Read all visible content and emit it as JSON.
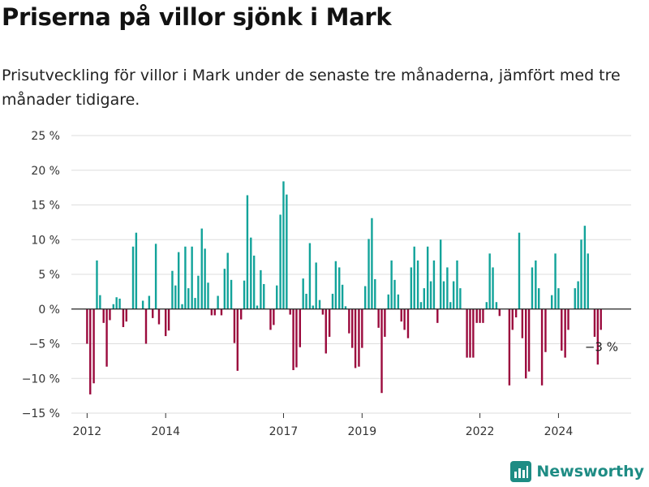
{
  "title": "Priserna på villor sjönk i Mark",
  "subtitle": "Prisutveckling för villor i Mark under de senaste tre månaderna, jämfört med tre månader tidigare.",
  "brand": "Newsworthy",
  "colors": {
    "positive": "#12a39a",
    "negative": "#9b0a3d",
    "grid": "#dddddd",
    "zero": "#222222",
    "brand": "#1e8c84"
  },
  "chart_data": {
    "type": "bar",
    "title": "Priserna på villor sjönk i Mark",
    "ylabel": "",
    "xlabel": "",
    "ylim": [
      -15,
      25
    ],
    "yticks": [
      25,
      20,
      15,
      10,
      5,
      0,
      -5,
      -10,
      -15
    ],
    "ytick_labels": [
      "25 %",
      "20 %",
      "15 %",
      "10 %",
      "5 %",
      "0 %",
      "−5 %",
      "−10 %",
      "−15 %"
    ],
    "xlim": [
      2011.6,
      2025.85
    ],
    "xticks": [
      2012,
      2014,
      2017,
      2019,
      2022,
      2024
    ],
    "xtick_labels": [
      "2012",
      "2014",
      "2017",
      "2019",
      "2022",
      "2024"
    ],
    "grid": true,
    "annotation": {
      "text": "−3 %",
      "x": 2025.0,
      "y": -3
    },
    "points": [
      [
        2012.0,
        -5
      ],
      [
        2012.08,
        -12.3
      ],
      [
        2012.17,
        -10.7
      ],
      [
        2012.25,
        7
      ],
      [
        2012.33,
        2
      ],
      [
        2012.42,
        -2
      ],
      [
        2012.5,
        -8.3
      ],
      [
        2012.58,
        -1.6
      ],
      [
        2012.67,
        0.7
      ],
      [
        2012.75,
        1.7
      ],
      [
        2012.83,
        1.5
      ],
      [
        2012.92,
        -2.6
      ],
      [
        2013.0,
        -1.8
      ],
      [
        2013.17,
        9
      ],
      [
        2013.25,
        11
      ],
      [
        2013.42,
        1.2
      ],
      [
        2013.5,
        -5
      ],
      [
        2013.58,
        1.9
      ],
      [
        2013.67,
        -1.3
      ],
      [
        2013.75,
        9.4
      ],
      [
        2013.83,
        -2.2
      ],
      [
        2014.0,
        -3.9
      ],
      [
        2014.08,
        -3.1
      ],
      [
        2014.17,
        5.5
      ],
      [
        2014.25,
        3.4
      ],
      [
        2014.33,
        8.2
      ],
      [
        2014.42,
        0.7
      ],
      [
        2014.5,
        9
      ],
      [
        2014.58,
        3
      ],
      [
        2014.67,
        9
      ],
      [
        2014.75,
        1.6
      ],
      [
        2014.83,
        4.8
      ],
      [
        2014.92,
        11.6
      ],
      [
        2015.0,
        8.7
      ],
      [
        2015.08,
        3.8
      ],
      [
        2015.17,
        -0.9
      ],
      [
        2015.25,
        -0.9
      ],
      [
        2015.33,
        1.9
      ],
      [
        2015.42,
        -0.9
      ],
      [
        2015.5,
        5.8
      ],
      [
        2015.58,
        8.1
      ],
      [
        2015.67,
        4.2
      ],
      [
        2015.75,
        -4.9
      ],
      [
        2015.83,
        -8.9
      ],
      [
        2015.92,
        -1.5
      ],
      [
        2016.0,
        4.1
      ],
      [
        2016.08,
        16.4
      ],
      [
        2016.17,
        10.3
      ],
      [
        2016.25,
        7.7
      ],
      [
        2016.33,
        0.5
      ],
      [
        2016.42,
        5.6
      ],
      [
        2016.5,
        3.6
      ],
      [
        2016.67,
        -3
      ],
      [
        2016.75,
        -2.3
      ],
      [
        2016.83,
        3.4
      ],
      [
        2016.92,
        13.6
      ],
      [
        2017.0,
        18.4
      ],
      [
        2017.08,
        16.5
      ],
      [
        2017.17,
        -0.8
      ],
      [
        2017.25,
        -8.8
      ],
      [
        2017.33,
        -8.4
      ],
      [
        2017.42,
        -5.5
      ],
      [
        2017.5,
        4.4
      ],
      [
        2017.58,
        2.2
      ],
      [
        2017.67,
        9.5
      ],
      [
        2017.75,
        0.5
      ],
      [
        2017.83,
        6.7
      ],
      [
        2017.92,
        1.3
      ],
      [
        2018.0,
        -0.8
      ],
      [
        2018.08,
        -6.4
      ],
      [
        2018.17,
        -4
      ],
      [
        2018.25,
        2.2
      ],
      [
        2018.33,
        6.9
      ],
      [
        2018.42,
        6
      ],
      [
        2018.5,
        3.5
      ],
      [
        2018.58,
        0.4
      ],
      [
        2018.67,
        -3.5
      ],
      [
        2018.75,
        -5.6
      ],
      [
        2018.83,
        -8.5
      ],
      [
        2018.92,
        -8.3
      ],
      [
        2019.0,
        -5.6
      ],
      [
        2019.08,
        3.3
      ],
      [
        2019.17,
        10.1
      ],
      [
        2019.25,
        13.1
      ],
      [
        2019.33,
        4.3
      ],
      [
        2019.42,
        -2.7
      ],
      [
        2019.5,
        -12.1
      ],
      [
        2019.58,
        -4
      ],
      [
        2019.67,
        2.1
      ],
      [
        2019.75,
        7
      ],
      [
        2019.83,
        4.2
      ],
      [
        2019.92,
        2.1
      ],
      [
        2020.0,
        -1.8
      ],
      [
        2020.08,
        -3
      ],
      [
        2020.17,
        -4.2
      ],
      [
        2020.25,
        6
      ],
      [
        2020.33,
        9
      ],
      [
        2020.42,
        7
      ],
      [
        2020.5,
        1
      ],
      [
        2020.58,
        3
      ],
      [
        2020.67,
        9
      ],
      [
        2020.75,
        4
      ],
      [
        2020.83,
        7
      ],
      [
        2020.92,
        -2
      ],
      [
        2021.0,
        10
      ],
      [
        2021.08,
        4
      ],
      [
        2021.17,
        6
      ],
      [
        2021.25,
        1
      ],
      [
        2021.33,
        4
      ],
      [
        2021.42,
        7
      ],
      [
        2021.5,
        3
      ],
      [
        2021.67,
        -7
      ],
      [
        2021.75,
        -7
      ],
      [
        2021.83,
        -7
      ],
      [
        2021.92,
        -2
      ],
      [
        2022.0,
        -2
      ],
      [
        2022.08,
        -2
      ],
      [
        2022.17,
        1
      ],
      [
        2022.25,
        8
      ],
      [
        2022.33,
        6
      ],
      [
        2022.42,
        1
      ],
      [
        2022.5,
        -1
      ],
      [
        2022.75,
        -11
      ],
      [
        2022.83,
        -3
      ],
      [
        2022.92,
        -1.2
      ],
      [
        2023.0,
        11
      ],
      [
        2023.08,
        -4.2
      ],
      [
        2023.17,
        -10
      ],
      [
        2023.25,
        -9
      ],
      [
        2023.33,
        6
      ],
      [
        2023.42,
        7
      ],
      [
        2023.5,
        3
      ],
      [
        2023.58,
        -11
      ],
      [
        2023.67,
        -6.2
      ],
      [
        2023.83,
        2
      ],
      [
        2023.92,
        8
      ],
      [
        2024.0,
        3
      ],
      [
        2024.08,
        -6
      ],
      [
        2024.17,
        -7
      ],
      [
        2024.25,
        -3
      ],
      [
        2024.42,
        3
      ],
      [
        2024.5,
        4
      ],
      [
        2024.58,
        10
      ],
      [
        2024.67,
        12
      ],
      [
        2024.75,
        8
      ],
      [
        2024.92,
        -4
      ],
      [
        2025.0,
        -8
      ],
      [
        2025.08,
        -3
      ]
    ]
  }
}
